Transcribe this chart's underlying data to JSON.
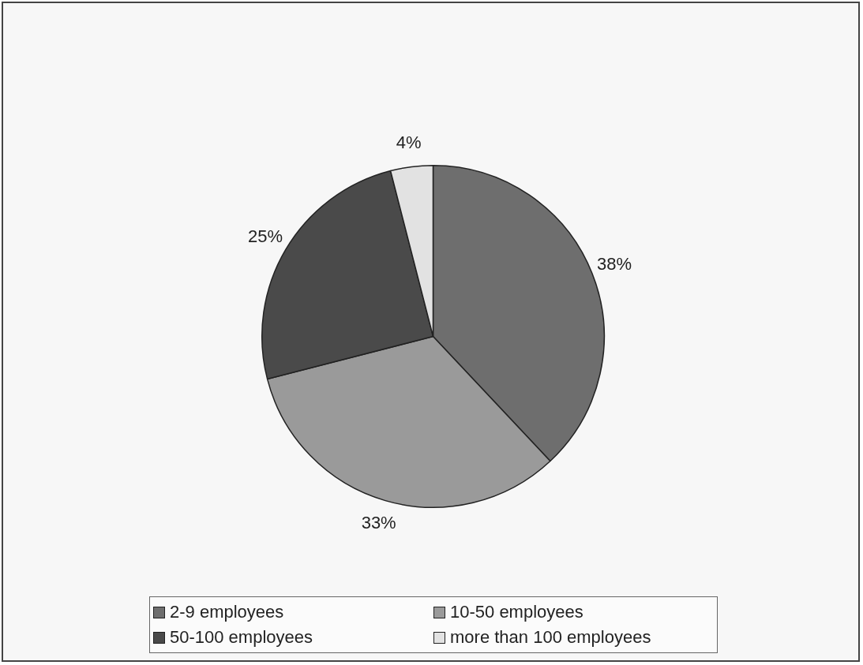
{
  "chart_data": {
    "type": "pie",
    "categories": [
      "2-9 employees",
      "10-50 employees",
      "50-100 employees",
      "more than 100 employees"
    ],
    "values": [
      38,
      33,
      25,
      4
    ],
    "value_labels": [
      "38%",
      "33%",
      "25%",
      "4%"
    ],
    "colors": [
      "#6e6e6e",
      "#9a9a9a",
      "#4a4a4a",
      "#e2e2e2"
    ],
    "legend": "bottom"
  }
}
